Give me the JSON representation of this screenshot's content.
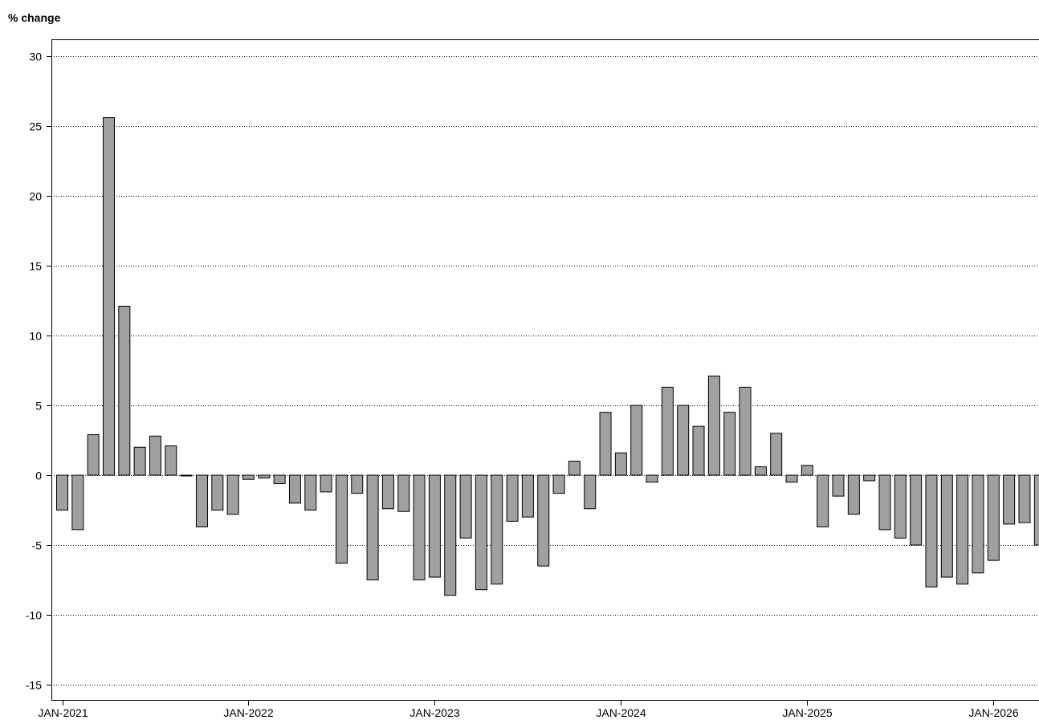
{
  "chart_data": {
    "type": "bar",
    "ylabel": "% change",
    "ylim": [
      -16,
      31
    ],
    "yticks": [
      30,
      25,
      20,
      15,
      10,
      5,
      0,
      -5,
      -10,
      -15
    ],
    "xticks": [
      "JAN-2021",
      "JAN-2022",
      "JAN-2023",
      "JAN-2024",
      "JAN-2025",
      "JAN-2026"
    ],
    "start_label": "JAN-2021",
    "grid": true,
    "colors": {
      "bar_fill": "#a0a0a0",
      "bar_stroke": "#000000",
      "grid": "#000000",
      "axis": "#000000"
    },
    "values": [
      -2.5,
      -3.9,
      2.9,
      25.6,
      12.1,
      2.0,
      2.8,
      2.1,
      0.0,
      -3.7,
      -2.5,
      -2.8,
      -0.3,
      -0.2,
      -0.6,
      -2.0,
      -2.5,
      -1.2,
      -6.3,
      -1.3,
      -7.5,
      -2.4,
      -2.6,
      -7.5,
      -7.3,
      -8.6,
      -4.5,
      -8.2,
      -7.8,
      -3.3,
      -3.0,
      -6.5,
      -1.3,
      1.0,
      -2.4,
      4.5,
      1.6,
      5.0,
      -0.5,
      6.3,
      5.0,
      3.5,
      7.1,
      4.5,
      6.3,
      0.6,
      3.0,
      -0.5,
      0.7,
      -3.7,
      -1.5,
      -2.8,
      -0.4,
      -3.9,
      -4.5,
      -5.0,
      -8.0,
      -7.3,
      -7.8,
      -7.0,
      -6.1,
      -3.5,
      -3.4,
      -5.0
    ]
  }
}
